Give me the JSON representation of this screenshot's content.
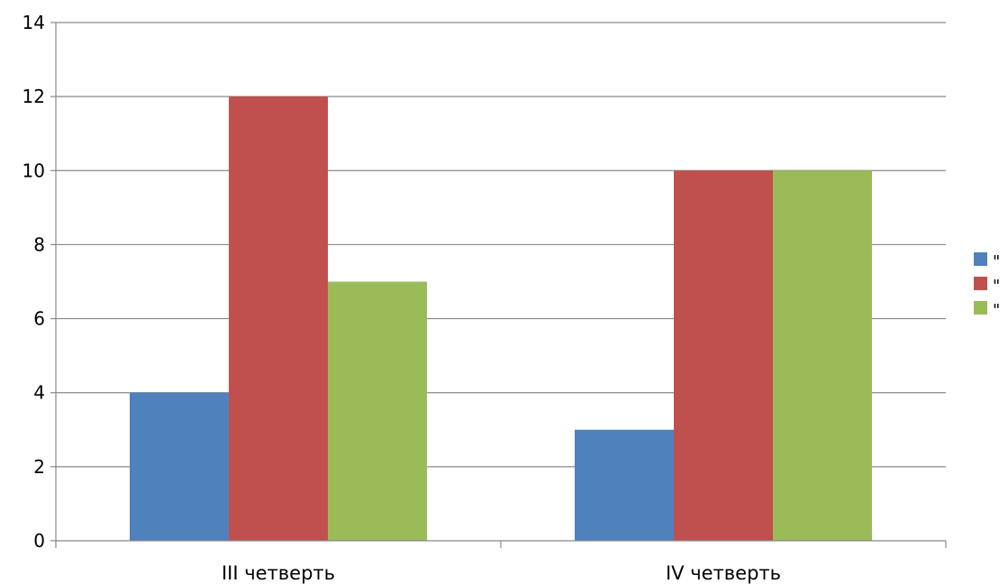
{
  "chart_data": {
    "type": "bar",
    "categories": [
      "III четверть",
      "IV четверть"
    ],
    "series": [
      {
        "name": "\"",
        "values": [
          4,
          3
        ],
        "color": "#4F81BD"
      },
      {
        "name": "\"",
        "values": [
          12,
          10
        ],
        "color": "#C0504D"
      },
      {
        "name": "\"",
        "values": [
          7,
          10
        ],
        "color": "#9BBB59"
      }
    ],
    "title": "",
    "xlabel": "",
    "ylabel": "",
    "ylim": [
      0,
      14
    ],
    "yticks": [
      0,
      2,
      4,
      6,
      8,
      10,
      12,
      14
    ],
    "grid": true,
    "legend": "right"
  }
}
